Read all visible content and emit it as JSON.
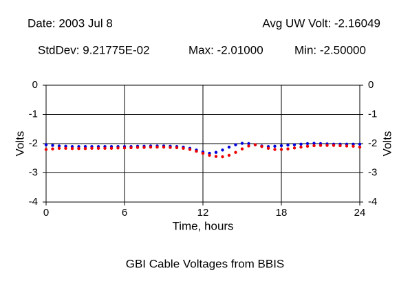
{
  "chart_data": {
    "type": "line",
    "header": {
      "date": "Date: 2003 Jul 8",
      "avg": "Avg UW Volt: -2.16049",
      "stddev": "StdDev: 9.21775E-02",
      "max": "Max: -2.01000",
      "min": "Min: -2.50000"
    },
    "title": "GBI Cable Voltages from BBIS",
    "xlabel": "Time, hours",
    "ylabel": "Volts",
    "y2label": "Volts",
    "xlim": [
      0,
      24
    ],
    "xticks": [
      0,
      6,
      12,
      18,
      24
    ],
    "ylim": [
      -4,
      0
    ],
    "yticks": [
      0,
      -1,
      -2,
      -3,
      -4
    ],
    "y2lim": [
      -4,
      0
    ],
    "y2ticks": [
      0,
      -1,
      -2,
      -3,
      -4
    ],
    "grid": true,
    "x": [
      0,
      0.5,
      1,
      1.5,
      2,
      2.5,
      3,
      3.5,
      4,
      4.5,
      5,
      5.5,
      6,
      6.5,
      7,
      7.5,
      8,
      8.5,
      9,
      9.5,
      10,
      10.5,
      11,
      11.5,
      12,
      12.5,
      13,
      13.5,
      14,
      14.5,
      15,
      15.5,
      16,
      16.5,
      17,
      17.5,
      18,
      18.5,
      19,
      19.5,
      20,
      20.5,
      21,
      21.5,
      22,
      22.5,
      23,
      23.5,
      24
    ],
    "series": [
      {
        "color": "#0000dd",
        "values": [
          -2.04,
          -2.06,
          -2.08,
          -2.09,
          -2.1,
          -2.1,
          -2.1,
          -2.1,
          -2.1,
          -2.1,
          -2.1,
          -2.1,
          -2.1,
          -2.1,
          -2.09,
          -2.09,
          -2.08,
          -2.08,
          -2.08,
          -2.09,
          -2.1,
          -2.12,
          -2.16,
          -2.22,
          -2.29,
          -2.33,
          -2.3,
          -2.22,
          -2.12,
          -2.04,
          -1.99,
          -2.0,
          -2.04,
          -2.08,
          -2.1,
          -2.09,
          -2.07,
          -2.05,
          -2.04,
          -2.02,
          -2.0,
          -1.99,
          -2.0,
          -2.01,
          -2.02,
          -2.02,
          -2.02,
          -2.02,
          -2.02
        ]
      },
      {
        "color": "#ee0000",
        "values": [
          -2.2,
          -2.18,
          -2.16,
          -2.16,
          -2.17,
          -2.17,
          -2.17,
          -2.16,
          -2.16,
          -2.16,
          -2.16,
          -2.15,
          -2.15,
          -2.14,
          -2.13,
          -2.13,
          -2.12,
          -2.12,
          -2.12,
          -2.13,
          -2.14,
          -2.16,
          -2.2,
          -2.26,
          -2.33,
          -2.4,
          -2.44,
          -2.45,
          -2.4,
          -2.3,
          -2.18,
          -2.08,
          -2.04,
          -2.1,
          -2.16,
          -2.2,
          -2.2,
          -2.18,
          -2.15,
          -2.12,
          -2.09,
          -2.07,
          -2.06,
          -2.06,
          -2.06,
          -2.07,
          -2.08,
          -2.09,
          -2.12
        ]
      }
    ]
  }
}
